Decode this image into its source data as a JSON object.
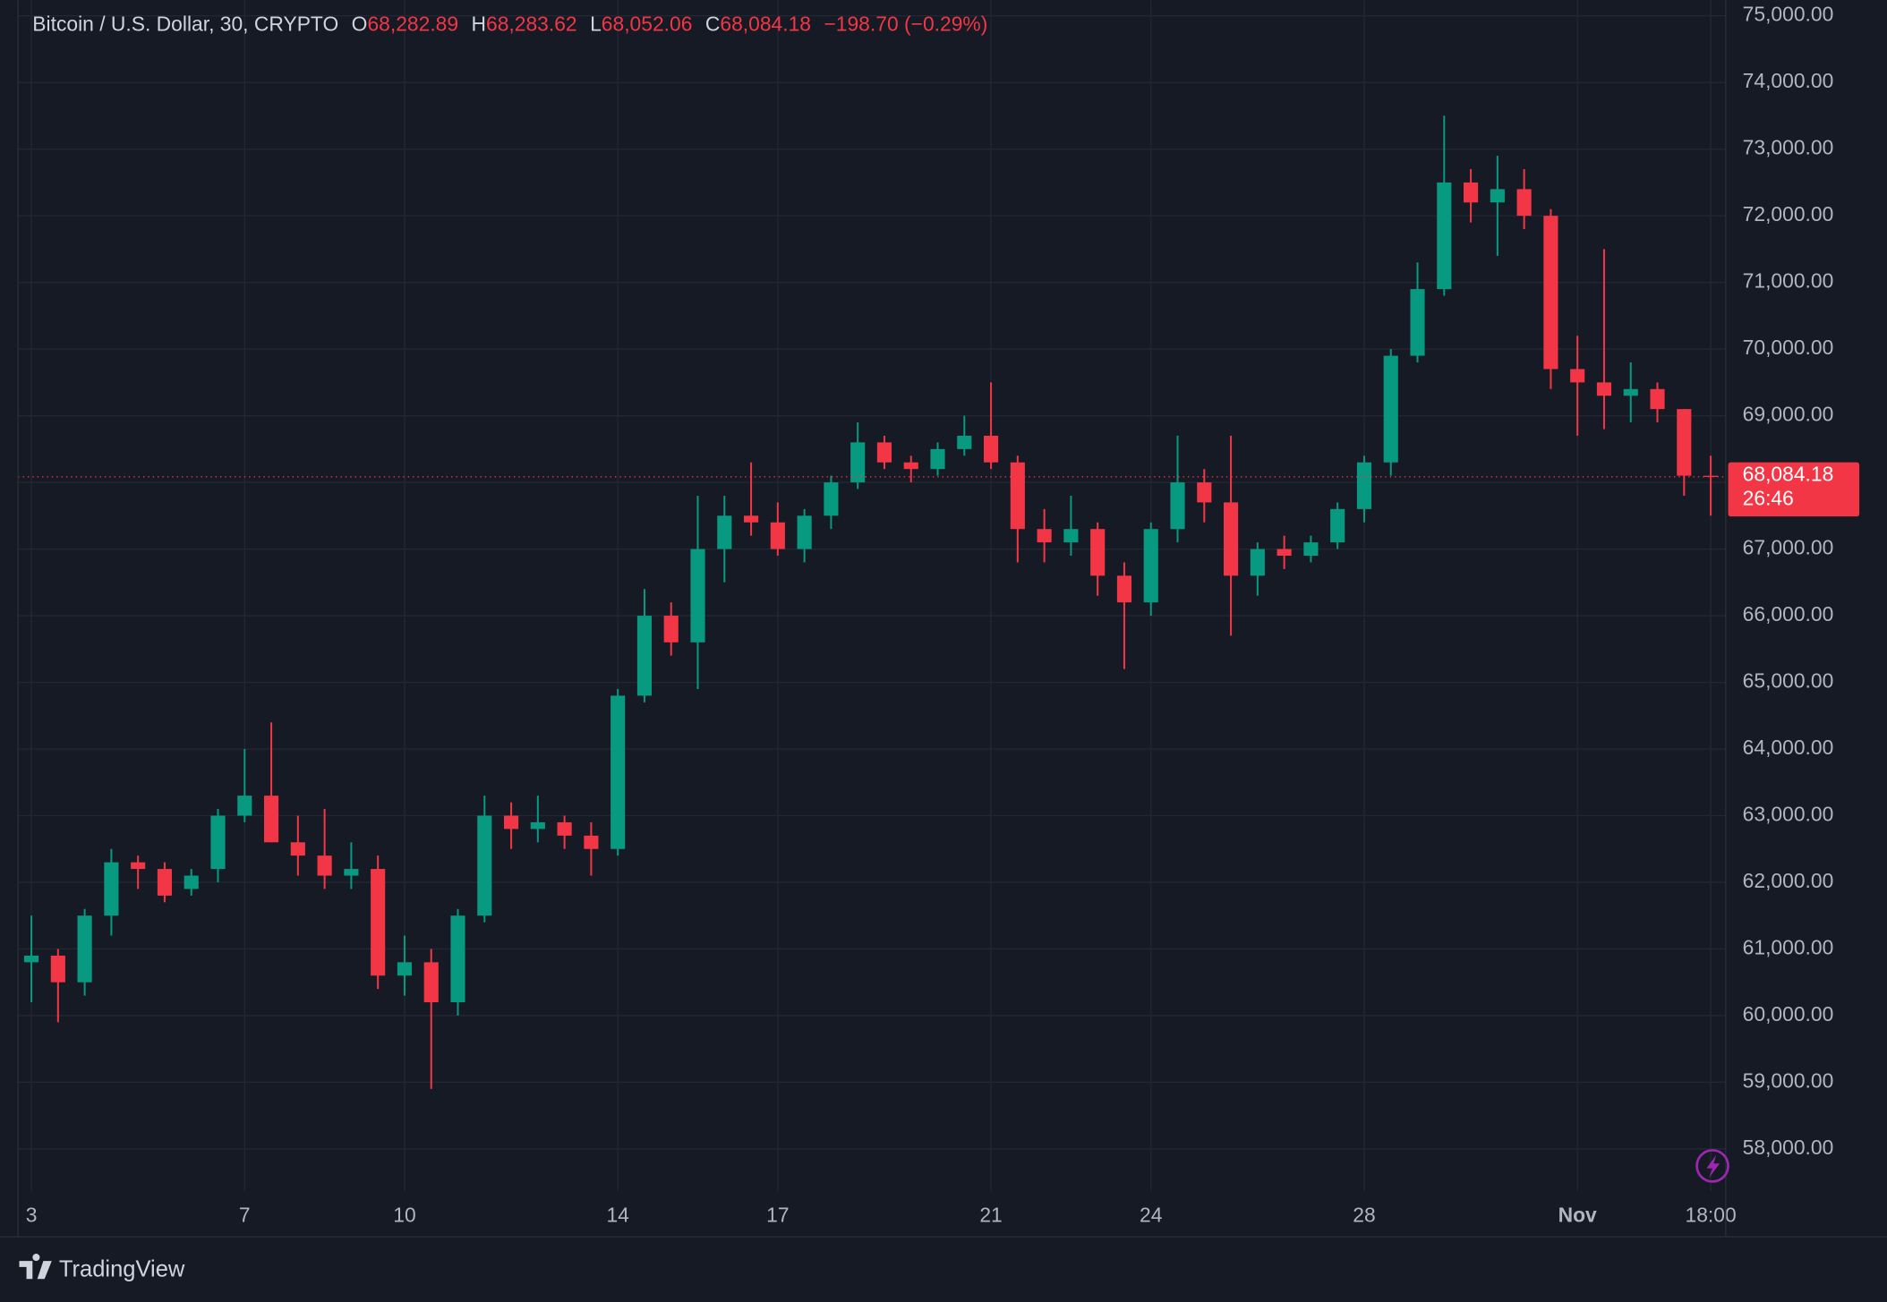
{
  "chart_data": {
    "type": "candlestick",
    "legend": {
      "symbol": "Bitcoin / U.S. Dollar, 30, CRYPTO",
      "open_key": "O",
      "open": "68,282.89",
      "high_key": "H",
      "high": "68,283.62",
      "low_key": "L",
      "low": "68,052.06",
      "close_key": "C",
      "close": "68,084.18",
      "change": "−198.70 (−0.29%)"
    },
    "categories": [
      "3",
      null,
      null,
      null,
      null,
      null,
      null,
      null,
      "7",
      null,
      null,
      null,
      null,
      null,
      "10",
      null,
      null,
      null,
      null,
      null,
      null,
      null,
      "14",
      null,
      null,
      null,
      null,
      null,
      "17",
      null,
      null,
      null,
      null,
      null,
      null,
      null,
      "21",
      null,
      null,
      null,
      null,
      null,
      "24",
      null,
      null,
      null,
      null,
      null,
      null,
      null,
      "28",
      null,
      null,
      null,
      null,
      null,
      null,
      null,
      "Nov",
      null,
      null,
      null,
      null,
      "18:00"
    ],
    "open": [
      60800,
      60900,
      60500,
      61500,
      62300,
      62200,
      61900,
      62200,
      63000,
      63300,
      62600,
      62400,
      62100,
      62200,
      60600,
      60800,
      60200,
      61500,
      63000,
      62800,
      62900,
      62700,
      62500,
      64800,
      66000,
      65600,
      67000,
      67500,
      67400,
      67000,
      67500,
      68000,
      68600,
      68300,
      68200,
      68500,
      68700,
      68300,
      67300,
      67100,
      67300,
      66600,
      66200,
      67300,
      68000,
      67700,
      66600,
      67000,
      66900,
      67100,
      67600,
      68300,
      69900,
      70900,
      72500,
      72200,
      72400,
      72000,
      69700,
      69500,
      69300,
      69400,
      69100,
      68100
    ],
    "high": [
      61500,
      61000,
      61600,
      62500,
      62400,
      62300,
      62200,
      63100,
      64000,
      64400,
      63000,
      63100,
      62600,
      62400,
      61200,
      61000,
      61600,
      63300,
      63200,
      63300,
      63000,
      62900,
      64900,
      66400,
      66200,
      67800,
      67800,
      68300,
      67700,
      67600,
      68100,
      68900,
      68700,
      68400,
      68600,
      69000,
      69500,
      68400,
      67600,
      67800,
      67400,
      66800,
      67400,
      68700,
      68200,
      68700,
      67100,
      67200,
      67200,
      67700,
      68400,
      70000,
      71300,
      73500,
      72700,
      72900,
      72700,
      72100,
      70200,
      71500,
      69800,
      69500,
      69100,
      68400
    ],
    "low": [
      60200,
      59900,
      60300,
      61200,
      61900,
      61700,
      61800,
      62000,
      62900,
      62600,
      62100,
      61900,
      61900,
      60400,
      60300,
      58900,
      60000,
      61400,
      62500,
      62600,
      62500,
      62100,
      62400,
      64700,
      65400,
      64900,
      66500,
      67200,
      66900,
      66800,
      67300,
      67900,
      68200,
      68000,
      68100,
      68400,
      68200,
      66800,
      66800,
      66900,
      66300,
      65200,
      66000,
      67100,
      67400,
      65700,
      66300,
      66700,
      66800,
      67000,
      67400,
      68100,
      69800,
      70800,
      71900,
      71400,
      71800,
      69400,
      68700,
      68800,
      68900,
      68900,
      67800,
      67500
    ],
    "close": [
      60900,
      60500,
      61500,
      62300,
      62200,
      61800,
      62100,
      63000,
      63300,
      62600,
      62400,
      62100,
      62200,
      60600,
      60800,
      60200,
      61500,
      63000,
      62800,
      62900,
      62700,
      62500,
      64800,
      66000,
      65600,
      67000,
      67500,
      67400,
      67000,
      67500,
      68000,
      68600,
      68300,
      68200,
      68500,
      68700,
      68300,
      67300,
      67100,
      67300,
      66600,
      66200,
      67300,
      68000,
      67700,
      66600,
      67000,
      66900,
      67100,
      67600,
      68300,
      69900,
      70900,
      72500,
      72200,
      72400,
      72000,
      69700,
      69500,
      69300,
      69400,
      69100,
      68100,
      68084.18
    ],
    "up_color": "#089981",
    "down_color": "#f23645",
    "ylim": [
      56680,
      75235
    ],
    "yticks": [
      {
        "value": 58000,
        "label": "58,000.00"
      },
      {
        "value": 59000,
        "label": "59,000.00"
      },
      {
        "value": 60000,
        "label": "60,000.00"
      },
      {
        "value": 61000,
        "label": "61,000.00"
      },
      {
        "value": 62000,
        "label": "62,000.00"
      },
      {
        "value": 63000,
        "label": "63,000.00"
      },
      {
        "value": 64000,
        "label": "64,000.00"
      },
      {
        "value": 65000,
        "label": "65,000.00"
      },
      {
        "value": 66000,
        "label": "66,000.00"
      },
      {
        "value": 67000,
        "label": "67,000.00"
      },
      {
        "value": 68000,
        "label": "68,000.00"
      },
      {
        "value": 69000,
        "label": "69,000.00"
      },
      {
        "value": 70000,
        "label": "70,000.00"
      },
      {
        "value": 71000,
        "label": "71,000.00"
      },
      {
        "value": 72000,
        "label": "72,000.00"
      },
      {
        "value": 73000,
        "label": "73,000.00"
      },
      {
        "value": 74000,
        "label": "74,000.00"
      },
      {
        "value": 75000,
        "label": "75,000.00"
      }
    ],
    "grid": true,
    "price_label": "68,084.18",
    "countdown": "26:46",
    "brand": "TradingView"
  }
}
